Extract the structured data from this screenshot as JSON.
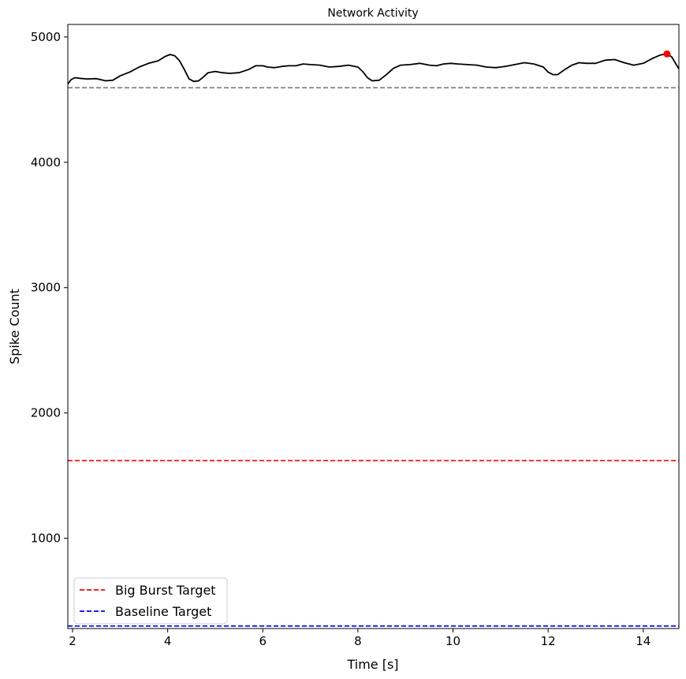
{
  "chart_data": {
    "type": "line",
    "title": "Network Activity",
    "xlabel": "Time [s]",
    "ylabel": "Spike Count",
    "xlim": [
      1.9,
      14.75
    ],
    "ylim": [
      280,
      5100
    ],
    "xticks": [
      2,
      4,
      6,
      8,
      10,
      12,
      14
    ],
    "yticks": [
      1000,
      2000,
      3000,
      4000,
      5000
    ],
    "grid": false,
    "legend_position": "lower-left",
    "series": [
      {
        "color": "#000000",
        "x": [
          1.9,
          1.97,
          2.05,
          2.15,
          2.3,
          2.5,
          2.7,
          2.85,
          3.0,
          3.2,
          3.4,
          3.6,
          3.8,
          3.95,
          4.05,
          4.15,
          4.25,
          4.35,
          4.45,
          4.55,
          4.65,
          4.75,
          4.85,
          5.0,
          5.15,
          5.3,
          5.5,
          5.7,
          5.85,
          6.0,
          6.1,
          6.25,
          6.4,
          6.55,
          6.7,
          6.85,
          7.0,
          7.2,
          7.4,
          7.6,
          7.8,
          8.0,
          8.1,
          8.2,
          8.3,
          8.45,
          8.6,
          8.75,
          8.9,
          9.1,
          9.3,
          9.5,
          9.65,
          9.8,
          9.95,
          10.1,
          10.3,
          10.5,
          10.7,
          10.9,
          11.1,
          11.3,
          11.5,
          11.7,
          11.9,
          12.0,
          12.1,
          12.2,
          12.35,
          12.5,
          12.65,
          12.8,
          13.0,
          13.2,
          13.4,
          13.6,
          13.8,
          14.0,
          14.2,
          14.35,
          14.5,
          14.6,
          14.75
        ],
        "values": [
          4625,
          4660,
          4675,
          4670,
          4665,
          4668,
          4650,
          4655,
          4690,
          4720,
          4760,
          4790,
          4810,
          4845,
          4860,
          4850,
          4810,
          4740,
          4665,
          4645,
          4650,
          4680,
          4715,
          4725,
          4715,
          4710,
          4715,
          4740,
          4770,
          4770,
          4760,
          4755,
          4765,
          4770,
          4770,
          4785,
          4780,
          4775,
          4760,
          4765,
          4775,
          4760,
          4725,
          4675,
          4650,
          4655,
          4700,
          4750,
          4775,
          4780,
          4790,
          4775,
          4770,
          4785,
          4790,
          4785,
          4780,
          4775,
          4760,
          4755,
          4765,
          4780,
          4795,
          4785,
          4760,
          4720,
          4700,
          4700,
          4740,
          4775,
          4795,
          4790,
          4790,
          4815,
          4820,
          4795,
          4775,
          4790,
          4830,
          4855,
          4865,
          4840,
          4745
        ]
      }
    ],
    "marker": {
      "x": 14.5,
      "y": 4865,
      "color": "#ff0000"
    },
    "reference_lines": [
      {
        "y": 4595,
        "color": "#808080",
        "style": "dashed"
      },
      {
        "y": 1620,
        "color": "#ff0000",
        "style": "dashed",
        "label": "Big Burst Target"
      },
      {
        "y": 300,
        "color": "#0000ff",
        "style": "dashed",
        "label": "Baseline Target"
      }
    ],
    "legend": [
      "Big Burst Target",
      "Baseline Target"
    ]
  }
}
